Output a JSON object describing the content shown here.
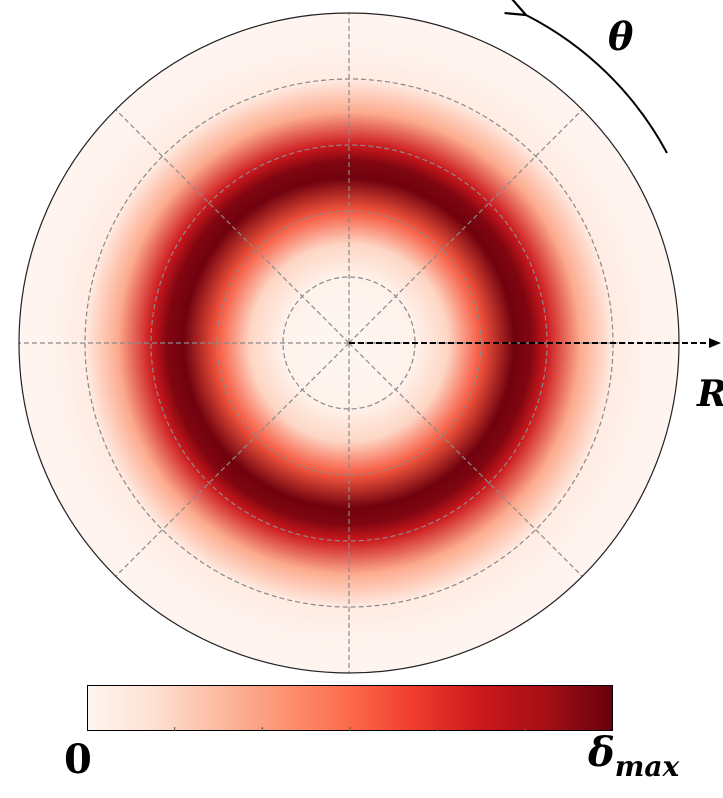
{
  "chart_data": {
    "type": "heatmap",
    "projection": "polar",
    "title": "",
    "axes": {
      "angular": {
        "label": "θ",
        "gridlines_deg": [
          0,
          45,
          90,
          135,
          180,
          225,
          270,
          315
        ],
        "direction": "counterclockwise"
      },
      "radial": {
        "label": "R",
        "gridline_fractions": [
          0.2,
          0.4,
          0.6,
          0.8
        ]
      }
    },
    "grid": true,
    "field": {
      "shape": "ring",
      "peak_radius_fraction": 0.51,
      "ring_width_fraction": 0.13,
      "values_at_radius_fraction": [
        [
          0.0,
          0.0
        ],
        [
          0.1,
          0.0
        ],
        [
          0.2,
          0.02
        ],
        [
          0.3,
          0.16
        ],
        [
          0.4,
          0.55
        ],
        [
          0.5,
          0.98
        ],
        [
          0.55,
          0.95
        ],
        [
          0.6,
          0.75
        ],
        [
          0.7,
          0.3
        ],
        [
          0.8,
          0.06
        ],
        [
          0.9,
          0.01
        ],
        [
          1.0,
          0.0
        ]
      ]
    },
    "colorbar": {
      "colormap": "Reds",
      "min_label": "0",
      "max_label": "δ",
      "max_label_subscript": "max",
      "colors": [
        "#fff5f0",
        "#fee0d2",
        "#fcbba1",
        "#fc9272",
        "#fb6a4a",
        "#ef3b2c",
        "#cb181d",
        "#a50f15",
        "#67000d"
      ],
      "placement": "bottom"
    }
  },
  "labels": {
    "theta": "θ",
    "r": "R",
    "cb_min": "0",
    "cb_max": "δ",
    "cb_max_sub": "max"
  }
}
